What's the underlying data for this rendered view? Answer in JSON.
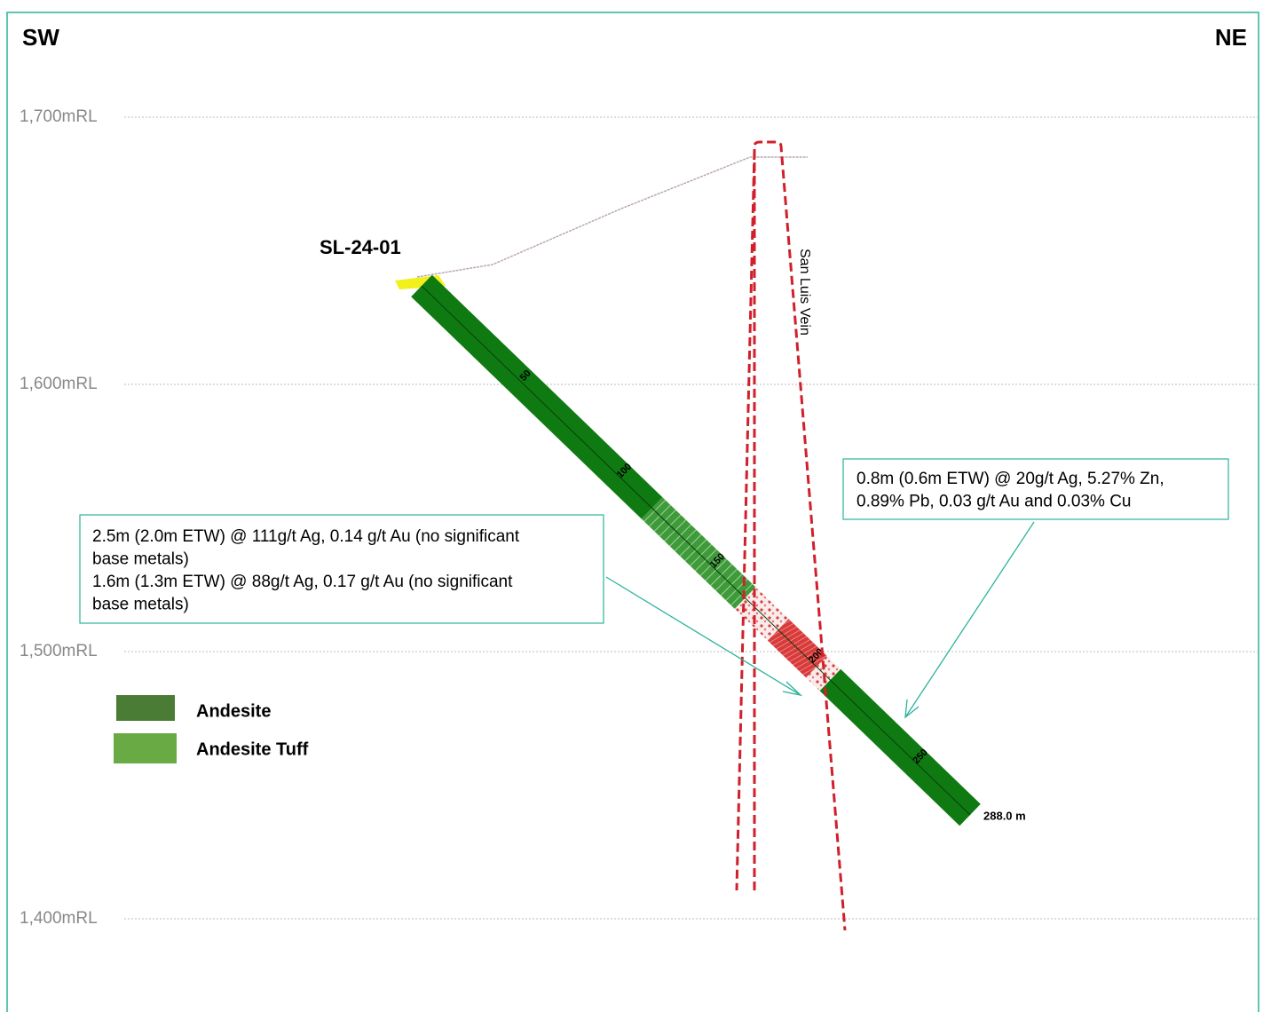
{
  "section": {
    "left_label": "SW",
    "right_label": "NE"
  },
  "elevations": [
    "1,700mRL",
    "1,600mRL",
    "1,500mRL",
    "1,400mRL"
  ],
  "drill_hole": {
    "name": "SL-24-01",
    "depth_labels": [
      "50",
      "100",
      "150",
      "200",
      "250"
    ],
    "end_label": "288.0 m"
  },
  "vein": {
    "label": "San Luis Vein"
  },
  "annotations": [
    {
      "lines": [
        "2.5m (2.0m ETW) @ 111g/t Ag, 0.14 g/t Au (no significant",
        "base metals)",
        "1.6m (1.3m ETW) @ 88g/t Ag, 0.17 g/t Au (no significant",
        "base metals)"
      ]
    },
    {
      "lines": [
        "0.8m (0.6m ETW) @ 20g/t Ag, 5.27% Zn,",
        "0.89% Pb, 0.03 g/t Au and 0.03% Cu"
      ]
    }
  ],
  "legend": [
    {
      "label": "Andesite",
      "color": "#4a7c35"
    },
    {
      "label": "Andesite Tuff",
      "color": "#6aaa45"
    }
  ]
}
